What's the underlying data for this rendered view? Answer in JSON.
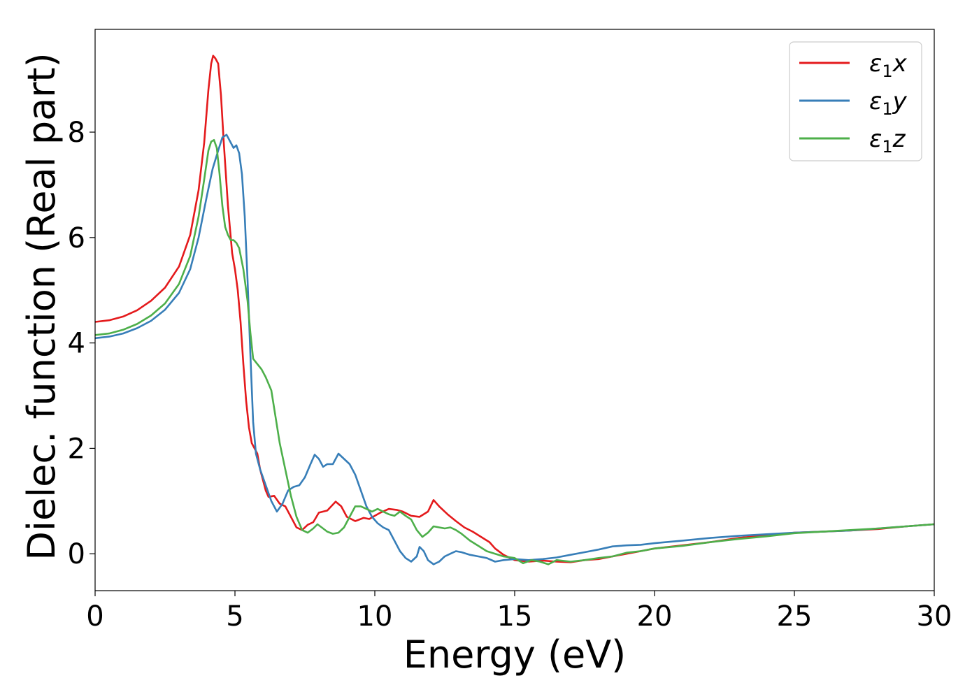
{
  "chart_data": {
    "type": "line",
    "title": "",
    "xlabel": "Energy (eV)",
    "ylabel": "Dielec. function (Real part)",
    "xlim": [
      0,
      30
    ],
    "ylim": [
      -0.7,
      9.95
    ],
    "xticks": [
      0,
      5,
      10,
      15,
      20,
      25,
      30
    ],
    "yticks": [
      0,
      2,
      4,
      6,
      8
    ],
    "grid": false,
    "legend_position": "top-right",
    "series": [
      {
        "name": "ε₁x",
        "legend_base": "ε",
        "legend_sub": "1",
        "legend_suffix": "x",
        "color": "#e41a1c",
        "points": [
          [
            0,
            4.4
          ],
          [
            0.5,
            4.43
          ],
          [
            1.0,
            4.5
          ],
          [
            1.5,
            4.62
          ],
          [
            2.0,
            4.8
          ],
          [
            2.5,
            5.05
          ],
          [
            3.0,
            5.45
          ],
          [
            3.4,
            6.05
          ],
          [
            3.7,
            6.9
          ],
          [
            3.9,
            7.8
          ],
          [
            4.05,
            8.8
          ],
          [
            4.15,
            9.3
          ],
          [
            4.22,
            9.45
          ],
          [
            4.3,
            9.4
          ],
          [
            4.4,
            9.3
          ],
          [
            4.5,
            8.7
          ],
          [
            4.6,
            7.8
          ],
          [
            4.75,
            6.6
          ],
          [
            4.9,
            5.7
          ],
          [
            5.0,
            5.4
          ],
          [
            5.1,
            5.0
          ],
          [
            5.2,
            4.4
          ],
          [
            5.3,
            3.6
          ],
          [
            5.4,
            2.9
          ],
          [
            5.5,
            2.4
          ],
          [
            5.6,
            2.1
          ],
          [
            5.8,
            1.9
          ],
          [
            5.9,
            1.6
          ],
          [
            6.1,
            1.2
          ],
          [
            6.2,
            1.08
          ],
          [
            6.4,
            1.1
          ],
          [
            6.6,
            0.95
          ],
          [
            6.8,
            0.9
          ],
          [
            7.0,
            0.7
          ],
          [
            7.2,
            0.5
          ],
          [
            7.4,
            0.45
          ],
          [
            7.6,
            0.55
          ],
          [
            7.8,
            0.6
          ],
          [
            8.0,
            0.78
          ],
          [
            8.3,
            0.82
          ],
          [
            8.6,
            0.99
          ],
          [
            8.8,
            0.9
          ],
          [
            9.0,
            0.7
          ],
          [
            9.3,
            0.62
          ],
          [
            9.6,
            0.68
          ],
          [
            9.8,
            0.66
          ],
          [
            10.0,
            0.72
          ],
          [
            10.2,
            0.78
          ],
          [
            10.5,
            0.85
          ],
          [
            10.8,
            0.83
          ],
          [
            11.0,
            0.8
          ],
          [
            11.3,
            0.72
          ],
          [
            11.6,
            0.7
          ],
          [
            11.9,
            0.8
          ],
          [
            12.1,
            1.02
          ],
          [
            12.3,
            0.9
          ],
          [
            12.6,
            0.75
          ],
          [
            12.9,
            0.62
          ],
          [
            13.2,
            0.5
          ],
          [
            13.5,
            0.42
          ],
          [
            13.8,
            0.32
          ],
          [
            14.1,
            0.22
          ],
          [
            14.3,
            0.1
          ],
          [
            14.6,
            -0.02
          ],
          [
            15.0,
            -0.12
          ],
          [
            15.5,
            -0.15
          ],
          [
            16.0,
            -0.13
          ],
          [
            16.5,
            -0.15
          ],
          [
            17.0,
            -0.16
          ],
          [
            17.5,
            -0.12
          ],
          [
            18.0,
            -0.1
          ],
          [
            18.5,
            -0.05
          ],
          [
            19.0,
            0.0
          ],
          [
            19.5,
            0.05
          ],
          [
            20.0,
            0.1
          ],
          [
            21.0,
            0.16
          ],
          [
            22.0,
            0.22
          ],
          [
            23.0,
            0.3
          ],
          [
            24.0,
            0.35
          ],
          [
            25.0,
            0.4
          ],
          [
            26.0,
            0.42
          ],
          [
            27.0,
            0.44
          ],
          [
            28.0,
            0.47
          ],
          [
            29.0,
            0.52
          ],
          [
            30.0,
            0.56
          ]
        ]
      },
      {
        "name": "ε₁y",
        "legend_base": "ε",
        "legend_sub": "1",
        "legend_suffix": "y",
        "color": "#377eb8",
        "points": [
          [
            0,
            4.09
          ],
          [
            0.5,
            4.12
          ],
          [
            1.0,
            4.18
          ],
          [
            1.5,
            4.28
          ],
          [
            2.0,
            4.42
          ],
          [
            2.5,
            4.63
          ],
          [
            3.0,
            4.95
          ],
          [
            3.4,
            5.4
          ],
          [
            3.7,
            6.0
          ],
          [
            4.0,
            6.8
          ],
          [
            4.2,
            7.3
          ],
          [
            4.4,
            7.65
          ],
          [
            4.55,
            7.9
          ],
          [
            4.7,
            7.95
          ],
          [
            4.85,
            7.8
          ],
          [
            4.95,
            7.7
          ],
          [
            5.05,
            7.75
          ],
          [
            5.15,
            7.6
          ],
          [
            5.25,
            7.2
          ],
          [
            5.35,
            6.4
          ],
          [
            5.45,
            5.2
          ],
          [
            5.55,
            3.8
          ],
          [
            5.65,
            2.5
          ],
          [
            5.75,
            1.9
          ],
          [
            5.9,
            1.6
          ],
          [
            6.1,
            1.3
          ],
          [
            6.3,
            1.0
          ],
          [
            6.5,
            0.8
          ],
          [
            6.7,
            0.95
          ],
          [
            6.9,
            1.2
          ],
          [
            7.1,
            1.27
          ],
          [
            7.3,
            1.3
          ],
          [
            7.5,
            1.45
          ],
          [
            7.7,
            1.7
          ],
          [
            7.85,
            1.88
          ],
          [
            8.0,
            1.8
          ],
          [
            8.15,
            1.65
          ],
          [
            8.3,
            1.7
          ],
          [
            8.5,
            1.7
          ],
          [
            8.7,
            1.9
          ],
          [
            8.9,
            1.8
          ],
          [
            9.1,
            1.7
          ],
          [
            9.3,
            1.5
          ],
          [
            9.5,
            1.2
          ],
          [
            9.7,
            0.9
          ],
          [
            9.9,
            0.7
          ],
          [
            10.1,
            0.58
          ],
          [
            10.3,
            0.5
          ],
          [
            10.5,
            0.45
          ],
          [
            10.7,
            0.25
          ],
          [
            10.9,
            0.05
          ],
          [
            11.1,
            -0.08
          ],
          [
            11.3,
            -0.15
          ],
          [
            11.5,
            -0.05
          ],
          [
            11.6,
            0.13
          ],
          [
            11.75,
            0.05
          ],
          [
            11.9,
            -0.12
          ],
          [
            12.1,
            -0.2
          ],
          [
            12.3,
            -0.15
          ],
          [
            12.5,
            -0.05
          ],
          [
            12.7,
            0.0
          ],
          [
            12.9,
            0.05
          ],
          [
            13.1,
            0.03
          ],
          [
            13.4,
            -0.02
          ],
          [
            13.7,
            -0.05
          ],
          [
            14.0,
            -0.08
          ],
          [
            14.3,
            -0.15
          ],
          [
            14.6,
            -0.12
          ],
          [
            15.0,
            -0.1
          ],
          [
            15.5,
            -0.12
          ],
          [
            16.0,
            -0.1
          ],
          [
            16.5,
            -0.07
          ],
          [
            17.0,
            -0.02
          ],
          [
            17.5,
            0.03
          ],
          [
            18.0,
            0.08
          ],
          [
            18.5,
            0.14
          ],
          [
            19.0,
            0.16
          ],
          [
            19.5,
            0.17
          ],
          [
            20.0,
            0.2
          ],
          [
            21.0,
            0.25
          ],
          [
            22.0,
            0.3
          ],
          [
            23.0,
            0.34
          ],
          [
            24.0,
            0.37
          ],
          [
            25.0,
            0.4
          ],
          [
            26.0,
            0.42
          ],
          [
            27.0,
            0.44
          ],
          [
            28.0,
            0.48
          ],
          [
            29.0,
            0.52
          ],
          [
            30.0,
            0.56
          ]
        ]
      },
      {
        "name": "ε₁z",
        "legend_base": "ε",
        "legend_sub": "1",
        "legend_suffix": "z",
        "color": "#4daf4a",
        "points": [
          [
            0,
            4.15
          ],
          [
            0.5,
            4.18
          ],
          [
            1.0,
            4.25
          ],
          [
            1.5,
            4.36
          ],
          [
            2.0,
            4.52
          ],
          [
            2.5,
            4.75
          ],
          [
            3.0,
            5.12
          ],
          [
            3.4,
            5.65
          ],
          [
            3.7,
            6.4
          ],
          [
            3.9,
            7.1
          ],
          [
            4.05,
            7.65
          ],
          [
            4.15,
            7.82
          ],
          [
            4.25,
            7.85
          ],
          [
            4.35,
            7.7
          ],
          [
            4.45,
            7.2
          ],
          [
            4.55,
            6.6
          ],
          [
            4.65,
            6.2
          ],
          [
            4.75,
            6.05
          ],
          [
            4.85,
            5.95
          ],
          [
            4.95,
            5.95
          ],
          [
            5.05,
            5.9
          ],
          [
            5.15,
            5.8
          ],
          [
            5.3,
            5.4
          ],
          [
            5.45,
            4.8
          ],
          [
            5.55,
            4.2
          ],
          [
            5.65,
            3.7
          ],
          [
            5.8,
            3.6
          ],
          [
            5.95,
            3.5
          ],
          [
            6.1,
            3.35
          ],
          [
            6.3,
            3.1
          ],
          [
            6.45,
            2.6
          ],
          [
            6.6,
            2.1
          ],
          [
            6.8,
            1.6
          ],
          [
            7.0,
            1.1
          ],
          [
            7.2,
            0.7
          ],
          [
            7.4,
            0.45
          ],
          [
            7.6,
            0.4
          ],
          [
            7.8,
            0.48
          ],
          [
            7.95,
            0.56
          ],
          [
            8.1,
            0.5
          ],
          [
            8.3,
            0.42
          ],
          [
            8.5,
            0.38
          ],
          [
            8.7,
            0.4
          ],
          [
            8.9,
            0.5
          ],
          [
            9.1,
            0.7
          ],
          [
            9.3,
            0.9
          ],
          [
            9.5,
            0.9
          ],
          [
            9.7,
            0.85
          ],
          [
            9.9,
            0.8
          ],
          [
            10.1,
            0.85
          ],
          [
            10.3,
            0.8
          ],
          [
            10.5,
            0.75
          ],
          [
            10.7,
            0.72
          ],
          [
            10.9,
            0.8
          ],
          [
            11.1,
            0.72
          ],
          [
            11.3,
            0.65
          ],
          [
            11.5,
            0.45
          ],
          [
            11.7,
            0.32
          ],
          [
            11.9,
            0.4
          ],
          [
            12.1,
            0.52
          ],
          [
            12.3,
            0.5
          ],
          [
            12.5,
            0.48
          ],
          [
            12.7,
            0.5
          ],
          [
            12.9,
            0.45
          ],
          [
            13.1,
            0.38
          ],
          [
            13.4,
            0.25
          ],
          [
            13.7,
            0.15
          ],
          [
            14.0,
            0.05
          ],
          [
            14.3,
            0.0
          ],
          [
            14.6,
            -0.05
          ],
          [
            15.0,
            -0.08
          ],
          [
            15.3,
            -0.18
          ],
          [
            15.6,
            -0.12
          ],
          [
            15.9,
            -0.15
          ],
          [
            16.2,
            -0.2
          ],
          [
            16.5,
            -0.12
          ],
          [
            17.0,
            -0.15
          ],
          [
            17.5,
            -0.12
          ],
          [
            18.0,
            -0.08
          ],
          [
            18.5,
            -0.05
          ],
          [
            19.0,
            0.02
          ],
          [
            19.5,
            0.05
          ],
          [
            20.0,
            0.1
          ],
          [
            21.0,
            0.15
          ],
          [
            22.0,
            0.22
          ],
          [
            23.0,
            0.28
          ],
          [
            24.0,
            0.33
          ],
          [
            25.0,
            0.39
          ],
          [
            26.0,
            0.42
          ],
          [
            27.0,
            0.45
          ],
          [
            28.0,
            0.48
          ],
          [
            29.0,
            0.52
          ],
          [
            30.0,
            0.56
          ]
        ]
      }
    ]
  }
}
